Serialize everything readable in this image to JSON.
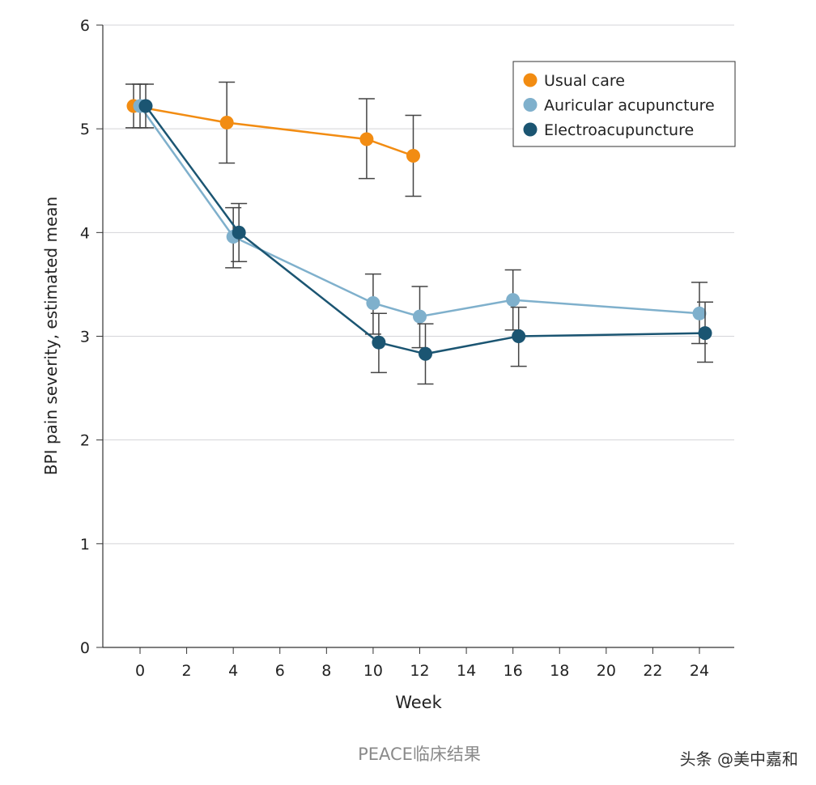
{
  "chart_data": {
    "type": "line",
    "title": "",
    "xlabel": "Week",
    "ylabel": "BPI pain severity, estimated mean",
    "xlim": [
      -2,
      25.5
    ],
    "ylim": [
      0,
      6
    ],
    "xticks": [
      0,
      2,
      4,
      6,
      8,
      10,
      12,
      14,
      16,
      18,
      20,
      22,
      24
    ],
    "yticks": [
      0,
      1,
      2,
      3,
      4,
      5,
      6
    ],
    "grid": "horizontal",
    "legend_position": "top-right",
    "error_bars": true,
    "series": [
      {
        "name": "Usual care",
        "color": "#f28c12",
        "x": [
          0,
          4,
          10,
          12
        ],
        "y": [
          5.22,
          5.06,
          4.9,
          4.74
        ],
        "lower": [
          5.01,
          4.67,
          4.52,
          4.35
        ],
        "upper": [
          5.43,
          5.45,
          5.29,
          5.13
        ]
      },
      {
        "name": "Auricular acupuncture",
        "color": "#7fb0cc",
        "x": [
          0,
          4,
          10,
          12,
          16,
          24
        ],
        "y": [
          5.22,
          3.96,
          3.32,
          3.19,
          3.35,
          3.22
        ],
        "lower": [
          5.01,
          3.66,
          3.02,
          2.89,
          3.06,
          2.93
        ],
        "upper": [
          5.43,
          4.24,
          3.6,
          3.48,
          3.64,
          3.52
        ]
      },
      {
        "name": "Electroacupuncture",
        "color": "#1b5572",
        "x": [
          0,
          4,
          10,
          12,
          16,
          24
        ],
        "y": [
          5.22,
          4.0,
          2.94,
          2.83,
          3.0,
          3.03
        ],
        "lower": [
          5.01,
          3.72,
          2.65,
          2.54,
          2.71,
          2.75
        ],
        "upper": [
          5.43,
          4.28,
          3.22,
          3.12,
          3.28,
          3.33
        ]
      }
    ]
  },
  "caption": "PEACE临床结果",
  "watermark": "头条 @美中嘉和"
}
